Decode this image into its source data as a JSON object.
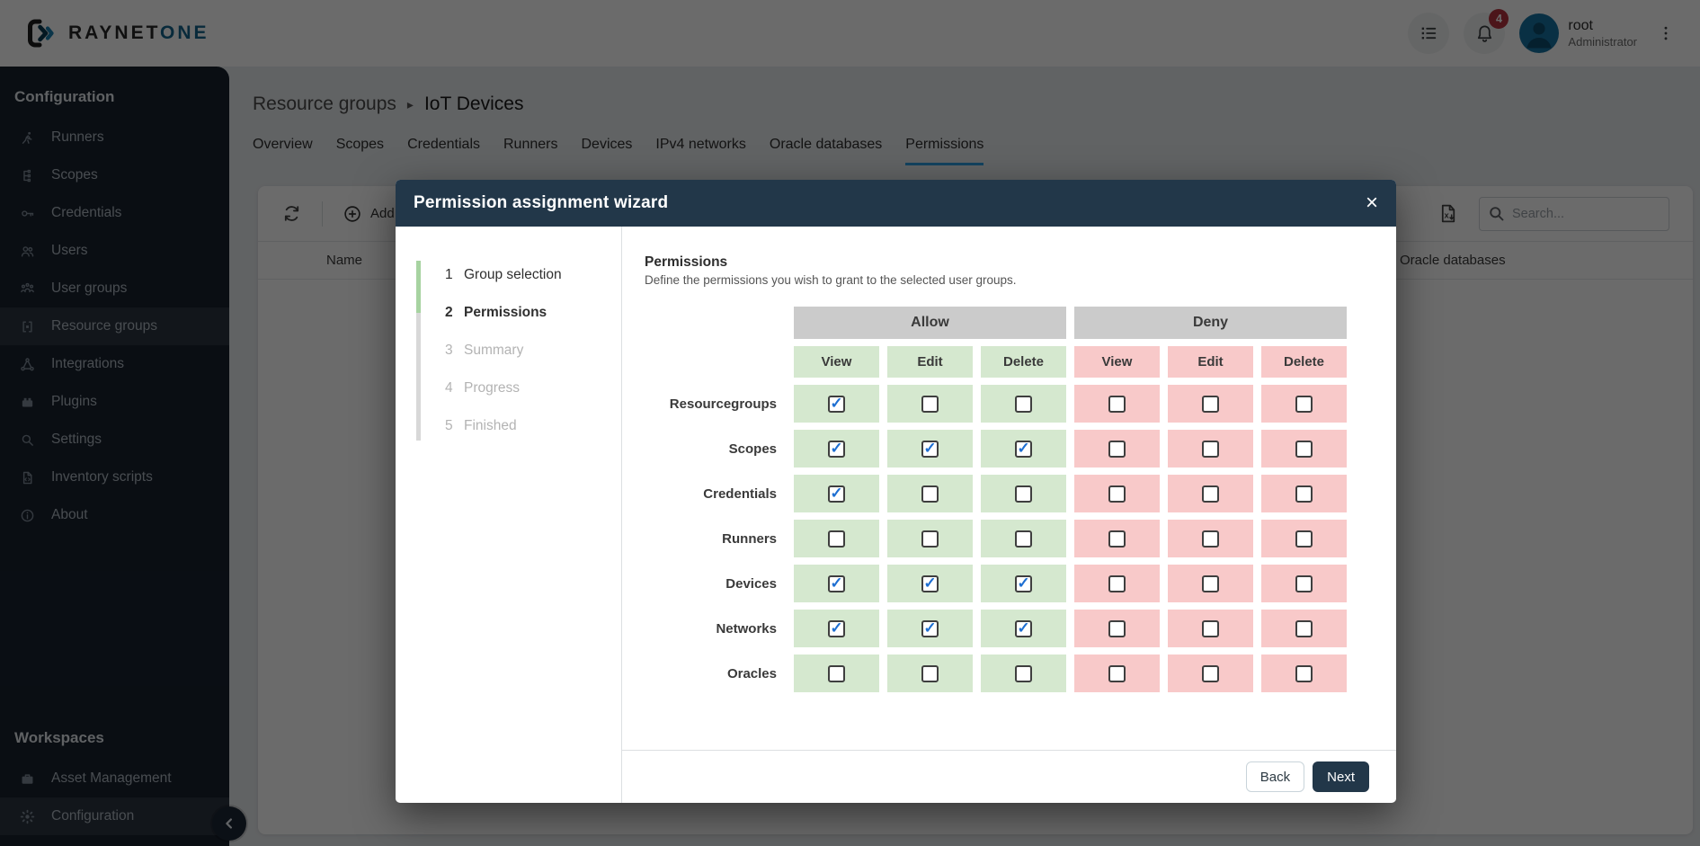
{
  "topbar": {
    "logo_primary": "RAYNET",
    "logo_secondary": "ONE",
    "notification_count": "4",
    "user_name": "root",
    "user_role": "Administrator"
  },
  "sidebar": {
    "configuration": {
      "heading": "Configuration",
      "items": [
        {
          "icon": "runner",
          "label": "Runners",
          "active": false
        },
        {
          "icon": "scopes",
          "label": "Scopes",
          "active": false
        },
        {
          "icon": "key",
          "label": "Credentials",
          "active": false
        },
        {
          "icon": "users",
          "label": "Users",
          "active": false
        },
        {
          "icon": "usergroups",
          "label": "User groups",
          "active": false
        },
        {
          "icon": "resourcegroups",
          "label": "Resource groups",
          "active": true
        },
        {
          "icon": "integrations",
          "label": "Integrations",
          "active": false
        },
        {
          "icon": "plugins",
          "label": "Plugins",
          "active": false
        },
        {
          "icon": "magnifier",
          "label": "Settings",
          "active": false
        },
        {
          "icon": "script",
          "label": "Inventory scripts",
          "active": false
        },
        {
          "icon": "info",
          "label": "About",
          "active": false
        }
      ]
    },
    "workspaces": {
      "heading": "Workspaces",
      "items": [
        {
          "icon": "briefcase",
          "label": "Asset Management",
          "active": false
        },
        {
          "icon": "gear",
          "label": "Configuration",
          "active": true
        }
      ]
    }
  },
  "page": {
    "breadcrumb": {
      "parent": "Resource groups",
      "separator": "▸",
      "current": "IoT Devices"
    },
    "tabs": [
      {
        "label": "Overview",
        "active": false
      },
      {
        "label": "Scopes",
        "active": false
      },
      {
        "label": "Credentials",
        "active": false
      },
      {
        "label": "Runners",
        "active": false
      },
      {
        "label": "Devices",
        "active": false
      },
      {
        "label": "IPv4 networks",
        "active": false
      },
      {
        "label": "Oracle databases",
        "active": false
      },
      {
        "label": "Permissions",
        "active": true
      }
    ],
    "toolbar": {
      "add_label": "Add",
      "search_placeholder": "Search..."
    },
    "table": {
      "columns": [
        "Name",
        "Oracle databases"
      ]
    }
  },
  "modal": {
    "title": "Permission assignment wizard",
    "close_glyph": "×",
    "steps": [
      {
        "number": "1",
        "label": "Group selection",
        "state": "done"
      },
      {
        "number": "2",
        "label": "Permissions",
        "state": "active"
      },
      {
        "number": "3",
        "label": "Summary",
        "state": "pending"
      },
      {
        "number": "4",
        "label": "Progress",
        "state": "pending"
      },
      {
        "number": "5",
        "label": "Finished",
        "state": "pending"
      }
    ],
    "content": {
      "heading": "Permissions",
      "description": "Define the permissions you wish to grant to the selected user groups.",
      "group_headers": [
        "Allow",
        "Deny"
      ],
      "action_headers": [
        "View",
        "Edit",
        "Delete"
      ],
      "rows": [
        {
          "label": "Resourcegroups",
          "allow": [
            true,
            false,
            false
          ],
          "deny": [
            false,
            false,
            false
          ]
        },
        {
          "label": "Scopes",
          "allow": [
            true,
            true,
            true
          ],
          "deny": [
            false,
            false,
            false
          ]
        },
        {
          "label": "Credentials",
          "allow": [
            true,
            false,
            false
          ],
          "deny": [
            false,
            false,
            false
          ]
        },
        {
          "label": "Runners",
          "allow": [
            false,
            false,
            false
          ],
          "deny": [
            false,
            false,
            false
          ]
        },
        {
          "label": "Devices",
          "allow": [
            true,
            true,
            true
          ],
          "deny": [
            false,
            false,
            false
          ]
        },
        {
          "label": "Networks",
          "allow": [
            true,
            true,
            true
          ],
          "deny": [
            false,
            false,
            false
          ]
        },
        {
          "label": "Oracles",
          "allow": [
            false,
            false,
            false
          ],
          "deny": [
            false,
            false,
            false
          ]
        }
      ]
    },
    "footer": {
      "back_label": "Back",
      "next_label": "Next"
    }
  },
  "colors": {
    "modal_header": "#223749",
    "allow_cell": "#d5e8cf",
    "deny_cell": "#f8c9c9",
    "group_header": "#cbcbcb",
    "check": "#1e6fd2",
    "progress_done": "#a7d3a1",
    "progress_todo": "#d8d8d8",
    "tab_accent": "#2f9fe3",
    "badge": "#b5323e"
  }
}
